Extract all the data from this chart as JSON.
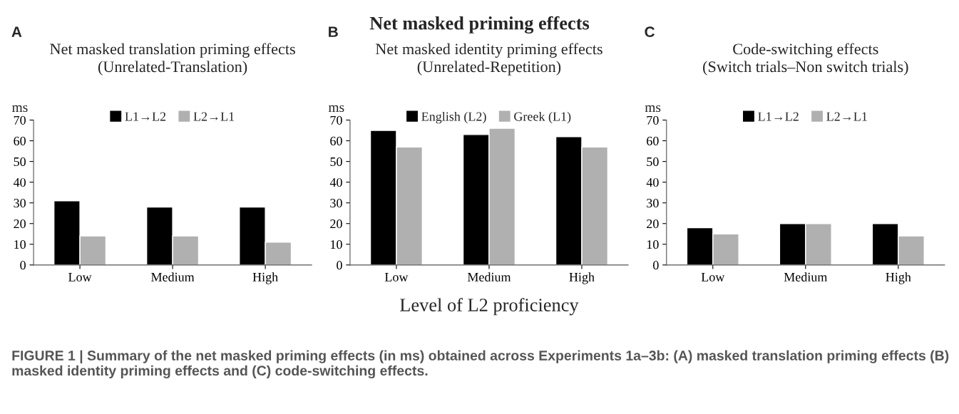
{
  "chart_data": [
    {
      "type": "bar",
      "title": "Net masked translation priming effects",
      "subtitle": "(Unrelated-Translation)",
      "ylabel": "ms",
      "categories": [
        "Low",
        "Medium",
        "High"
      ],
      "series": [
        {
          "name": "L1→L2",
          "color": "#000000",
          "values": [
            31,
            28,
            28
          ]
        },
        {
          "name": "L2→L1",
          "color": "#b0b0b0",
          "values": [
            14,
            14,
            11
          ]
        }
      ],
      "ylim": [
        0,
        70
      ],
      "yticks": [
        0,
        10,
        20,
        30,
        40,
        50,
        60,
        70
      ],
      "grid": false,
      "legend": "top",
      "annotations": [
        "Net masked priming effects",
        "A",
        "FIGURE 1 | Summary of the net masked priming effects (in ms) obtained across Experiments 1a–3b: (A) masked translation priming effects (B) masked identity priming effects and (C) code-switching effects."
      ]
    },
    {
      "type": "bar",
      "title": "Net masked identity priming effects",
      "subtitle": "(Unrelated-Repetition)",
      "ylabel": "ms",
      "xlabel": "Level of L2 proficiency",
      "categories": [
        "Low",
        "Medium",
        "High"
      ],
      "series": [
        {
          "name": "English (L2)",
          "color": "#000000",
          "values": [
            65,
            63,
            62
          ]
        },
        {
          "name": "Greek (L1)",
          "color": "#b0b0b0",
          "values": [
            57,
            66,
            57
          ]
        }
      ],
      "ylim": [
        0,
        70
      ],
      "yticks": [
        0,
        10,
        20,
        30,
        40,
        50,
        60,
        70
      ],
      "grid": false,
      "legend": "top",
      "annotations": [
        "B"
      ]
    },
    {
      "type": "bar",
      "title": "Code-switching effects",
      "subtitle": "(Switch trials–Non switch trials)",
      "ylabel": "ms",
      "categories": [
        "Low",
        "Medium",
        "High"
      ],
      "series": [
        {
          "name": "L1→L2",
          "color": "#000000",
          "values": [
            18,
            20,
            20
          ]
        },
        {
          "name": "L2→L1",
          "color": "#b0b0b0",
          "values": [
            15,
            20,
            14
          ]
        }
      ],
      "ylim": [
        0,
        70
      ],
      "yticks": [
        0,
        10,
        20,
        30,
        40,
        50,
        60,
        70
      ],
      "grid": false,
      "legend": "top",
      "annotations": [
        "C"
      ]
    }
  ]
}
